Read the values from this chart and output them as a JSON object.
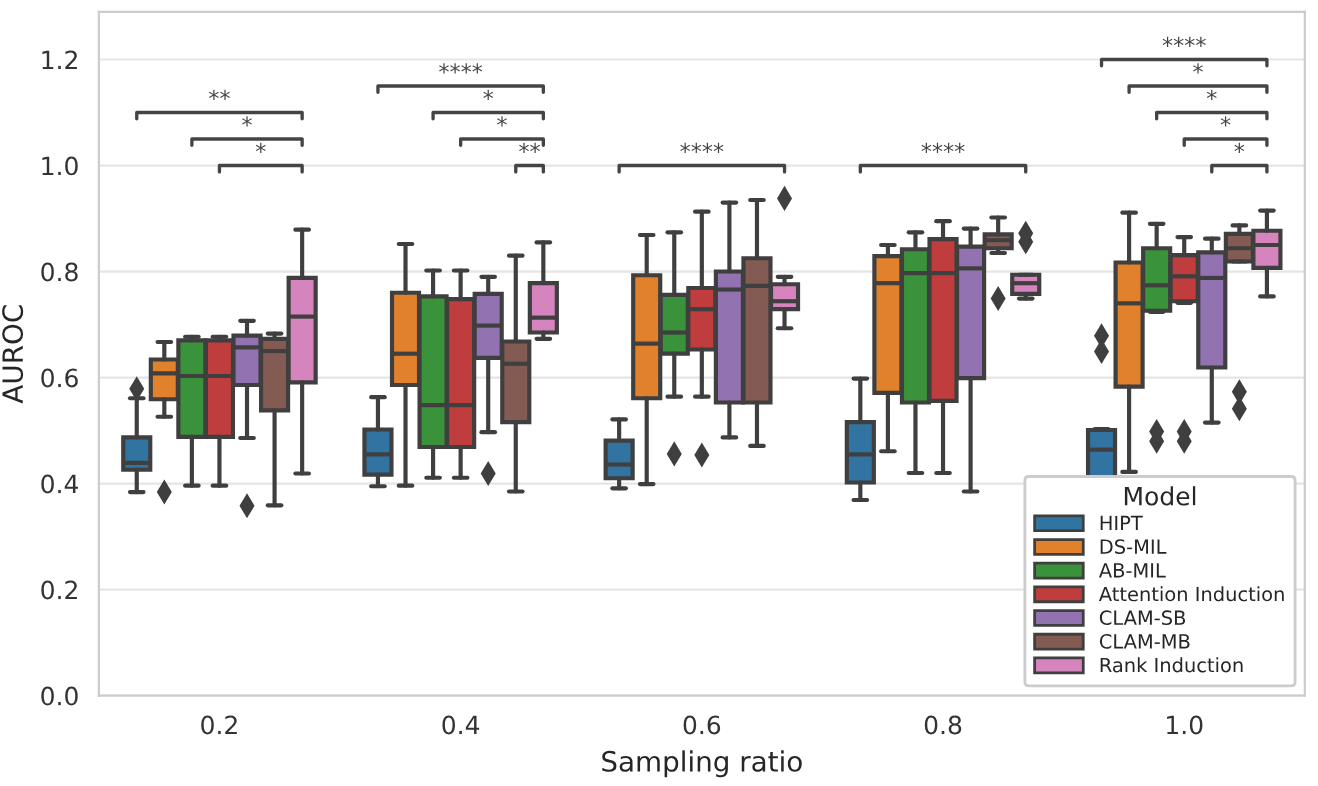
{
  "chart_data": {
    "type": "box",
    "xlabel": "Sampling ratio",
    "ylabel": "AUROC",
    "legend_title": "Model",
    "legend": "bottom right",
    "grid": "y",
    "categories": [
      "0.2",
      "0.4",
      "0.6",
      "0.8",
      "1.0"
    ],
    "ylim": [
      0,
      1.29
    ],
    "yticks": [
      {
        "value": 0,
        "label": "0.0"
      },
      0.2,
      0.4,
      0.6,
      0.8,
      {
        "value": 1,
        "label": "1.0"
      },
      1.2
    ],
    "series": [
      {
        "name": "HIPT",
        "color": "#3274a1",
        "boxes": [
          {
            "low": 0.384,
            "q1": 0.426,
            "median": 0.439,
            "q3": 0.487,
            "high": 0.561,
            "outliers": [
              0.579
            ]
          },
          {
            "low": 0.395,
            "q1": 0.417,
            "median": 0.455,
            "q3": 0.502,
            "high": 0.563
          },
          {
            "low": 0.391,
            "q1": 0.41,
            "median": 0.436,
            "q3": 0.481,
            "high": 0.521
          },
          {
            "low": 0.369,
            "q1": 0.402,
            "median": 0.455,
            "q3": 0.516,
            "high": 0.598
          },
          {
            "low": 0.383,
            "q1": 0.41,
            "median": 0.464,
            "q3": 0.501,
            "high": 0.503,
            "outliers": [
              0.679,
              0.649
            ]
          }
        ]
      },
      {
        "name": "DS-MIL",
        "color": "#e1812c",
        "boxes": [
          {
            "low": 0.526,
            "q1": 0.559,
            "median": 0.608,
            "q3": 0.634,
            "high": 0.667,
            "outliers": [
              0.384
            ]
          },
          {
            "low": 0.396,
            "q1": 0.586,
            "median": 0.645,
            "q3": 0.76,
            "high": 0.852
          },
          {
            "low": 0.399,
            "q1": 0.561,
            "median": 0.664,
            "q3": 0.793,
            "high": 0.869
          },
          {
            "low": 0.461,
            "q1": 0.571,
            "median": 0.778,
            "q3": 0.829,
            "high": 0.85
          },
          {
            "low": 0.422,
            "q1": 0.583,
            "median": 0.74,
            "q3": 0.817,
            "high": 0.911
          }
        ]
      },
      {
        "name": "AB-MIL",
        "color": "#3a923a",
        "boxes": [
          {
            "low": 0.396,
            "q1": 0.488,
            "median": 0.603,
            "q3": 0.67,
            "high": 0.677
          },
          {
            "low": 0.411,
            "q1": 0.469,
            "median": 0.548,
            "q3": 0.753,
            "high": 0.802
          },
          {
            "low": 0.564,
            "q1": 0.645,
            "median": 0.685,
            "q3": 0.756,
            "high": 0.874,
            "outliers": [
              0.456
            ]
          },
          {
            "low": 0.42,
            "q1": 0.553,
            "median": 0.797,
            "q3": 0.842,
            "high": 0.874
          },
          {
            "low": 0.724,
            "q1": 0.726,
            "median": 0.774,
            "q3": 0.844,
            "high": 0.89,
            "outliers": [
              0.498,
              0.48
            ]
          }
        ]
      },
      {
        "name": "Attention Induction",
        "color": "#c03d3e",
        "boxes": [
          {
            "low": 0.396,
            "q1": 0.488,
            "median": 0.603,
            "q3": 0.67,
            "high": 0.677
          },
          {
            "low": 0.411,
            "q1": 0.469,
            "median": 0.548,
            "q3": 0.748,
            "high": 0.802
          },
          {
            "low": 0.564,
            "q1": 0.653,
            "median": 0.729,
            "q3": 0.769,
            "high": 0.913,
            "outliers": [
              0.454
            ]
          },
          {
            "low": 0.42,
            "q1": 0.556,
            "median": 0.797,
            "q3": 0.861,
            "high": 0.895
          },
          {
            "low": 0.741,
            "q1": 0.744,
            "median": 0.791,
            "q3": 0.831,
            "high": 0.865,
            "outliers": [
              0.498,
              0.48
            ]
          }
        ]
      },
      {
        "name": "CLAM-SB",
        "color": "#9372b2",
        "boxes": [
          {
            "low": 0.486,
            "q1": 0.586,
            "median": 0.657,
            "q3": 0.679,
            "high": 0.707,
            "outliers": [
              0.358
            ]
          },
          {
            "low": 0.497,
            "q1": 0.637,
            "median": 0.698,
            "q3": 0.758,
            "high": 0.79,
            "outliers": [
              0.419
            ]
          },
          {
            "low": 0.487,
            "q1": 0.553,
            "median": 0.766,
            "q3": 0.8,
            "high": 0.93
          },
          {
            "low": 0.385,
            "q1": 0.599,
            "median": 0.806,
            "q3": 0.847,
            "high": 0.881
          },
          {
            "low": 0.515,
            "q1": 0.619,
            "median": 0.788,
            "q3": 0.836,
            "high": 0.862
          }
        ]
      },
      {
        "name": "CLAM-MB",
        "color": "#845b53",
        "boxes": [
          {
            "low": 0.359,
            "q1": 0.538,
            "median": 0.65,
            "q3": 0.673,
            "high": 0.683
          },
          {
            "low": 0.385,
            "q1": 0.516,
            "median": 0.626,
            "q3": 0.668,
            "high": 0.83
          },
          {
            "low": 0.471,
            "q1": 0.553,
            "median": 0.773,
            "q3": 0.825,
            "high": 0.935
          },
          {
            "low": 0.835,
            "q1": 0.844,
            "median": 0.859,
            "q3": 0.87,
            "high": 0.902,
            "outliers": [
              0.749
            ]
          },
          {
            "low": 0.819,
            "q1": 0.819,
            "median": 0.844,
            "q3": 0.871,
            "high": 0.887,
            "outliers": [
              0.573,
              0.541
            ]
          }
        ]
      },
      {
        "name": "Rank Induction",
        "color": "#d684bd",
        "boxes": [
          {
            "low": 0.419,
            "q1": 0.591,
            "median": 0.715,
            "q3": 0.788,
            "high": 0.879
          },
          {
            "low": 0.673,
            "q1": 0.685,
            "median": 0.713,
            "q3": 0.778,
            "high": 0.855
          },
          {
            "low": 0.693,
            "q1": 0.729,
            "median": 0.744,
            "q3": 0.776,
            "high": 0.79,
            "outliers": [
              0.938
            ]
          },
          {
            "low": 0.749,
            "q1": 0.758,
            "median": 0.778,
            "q3": 0.794,
            "high": 0.794,
            "outliers": [
              0.872,
              0.856
            ]
          },
          {
            "low": 0.753,
            "q1": 0.807,
            "median": 0.85,
            "q3": 0.877,
            "high": 0.915
          }
        ]
      }
    ],
    "annotations": [
      "**",
      "*",
      "*",
      "****",
      "*",
      "*",
      "**",
      "****",
      "****",
      "****",
      "*",
      "*",
      "*",
      "*"
    ]
  }
}
